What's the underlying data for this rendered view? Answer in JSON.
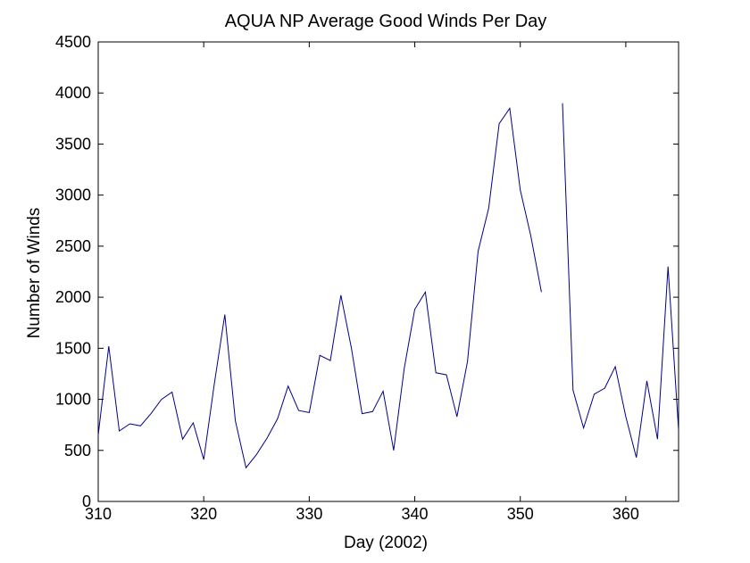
{
  "chart_data": {
    "type": "line",
    "title": "AQUA NP Average Good Winds Per Day",
    "xlabel": "Day (2002)",
    "ylabel": "Number of Winds",
    "xlim": [
      310,
      365
    ],
    "ylim": [
      0,
      4500
    ],
    "xticks": [
      310,
      320,
      330,
      340,
      350,
      360
    ],
    "yticks": [
      0,
      500,
      1000,
      1500,
      2000,
      2500,
      3000,
      3500,
      4000,
      4500
    ],
    "line_color": "#00008b",
    "grid": false,
    "legend": "none",
    "series": [
      {
        "x": [
          310,
          311,
          312,
          313,
          314,
          315,
          316,
          317,
          318,
          319,
          320,
          321,
          322,
          323,
          324,
          325,
          326,
          327,
          328,
          329,
          330,
          331,
          332,
          333,
          334,
          335,
          336,
          337,
          338,
          339,
          340,
          341,
          342,
          343,
          344,
          345,
          346,
          347,
          348,
          349,
          350,
          351,
          352,
          353,
          354,
          355,
          356,
          357,
          358,
          359,
          360,
          361,
          362,
          363,
          364,
          365
        ],
        "y": [
          650,
          1520,
          690,
          760,
          740,
          860,
          1000,
          1070,
          610,
          770,
          410,
          1150,
          1830,
          790,
          330,
          460,
          620,
          810,
          1130,
          890,
          870,
          1430,
          1380,
          2020,
          1500,
          860,
          880,
          1080,
          500,
          1300,
          1880,
          2050,
          1260,
          1240,
          830,
          1370,
          2450,
          2870,
          3700,
          3850,
          3050,
          2600,
          2050,
          null,
          3900,
          1090,
          720,
          1050,
          1110,
          1320,
          830,
          430,
          1180,
          610,
          2300,
          700
        ]
      }
    ]
  }
}
